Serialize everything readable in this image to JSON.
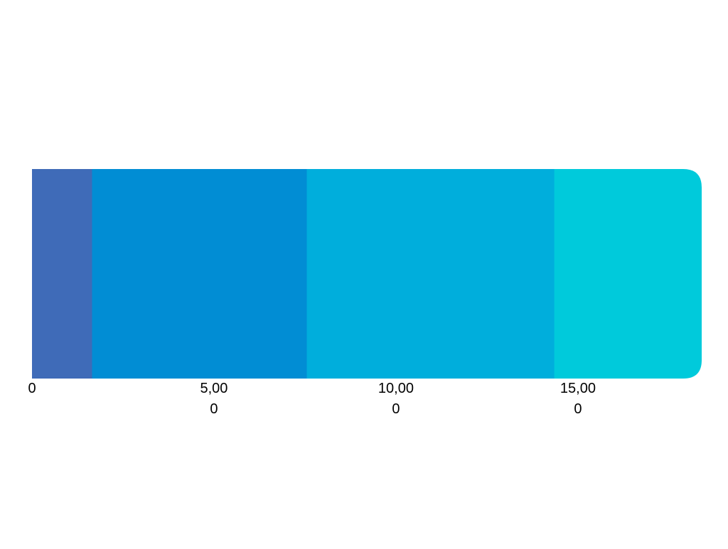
{
  "chart_data": {
    "type": "bar",
    "orientation": "horizontal",
    "stacked": true,
    "title": "",
    "xlabel": "",
    "ylabel": "",
    "xlim": [
      0,
      18400
    ],
    "grid": false,
    "legend": "none",
    "series": [
      {
        "value": 1650,
        "color": "#3F6BB8"
      },
      {
        "value": 5900,
        "color": "#018DD4"
      },
      {
        "value": 6800,
        "color": "#00AEDC"
      },
      {
        "value": 4050,
        "color": "#00CADB"
      }
    ],
    "tick_values": [
      0,
      5000,
      10000,
      15000
    ],
    "tick_labels": [
      {
        "line1": "0",
        "line2": ""
      },
      {
        "line1": "5,00",
        "line2": "0"
      },
      {
        "line1": "10,00",
        "line2": "0"
      },
      {
        "line1": "15,00",
        "line2": "0"
      }
    ]
  }
}
